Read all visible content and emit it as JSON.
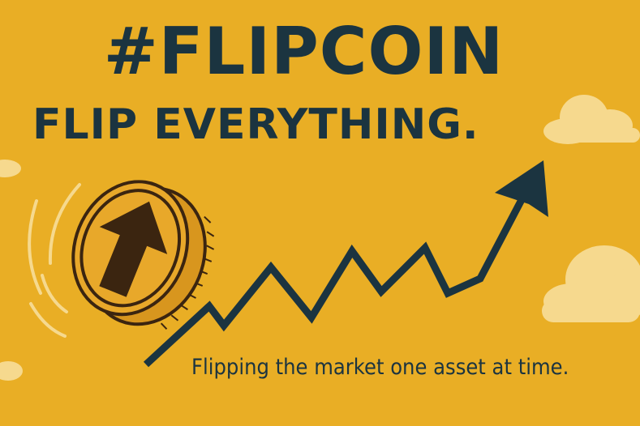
{
  "poster": {
    "title": "#FLIPCOIN",
    "subtitle": "FLIP EVERYTHING.",
    "tagline": "Flipping the market one asset at time."
  },
  "colors": {
    "background": "#E9AE25",
    "ink": "#1B3440",
    "cloud": "#F6D98E",
    "coin_face": "#E8A82A",
    "coin_arrow": "#3B2510"
  },
  "icons": [
    "coin-icon",
    "up-arrow-icon",
    "trend-arrow-icon",
    "cloud-icon"
  ]
}
